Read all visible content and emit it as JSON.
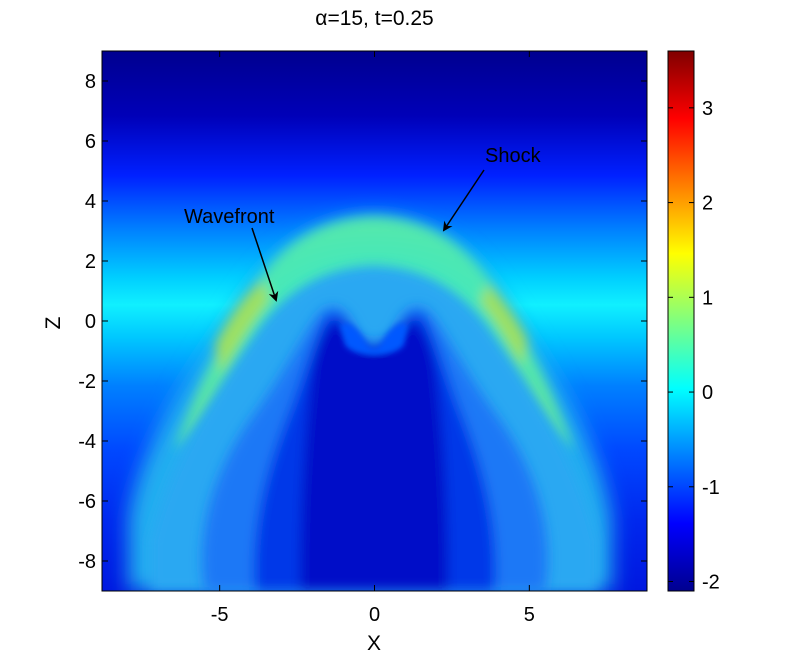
{
  "chart_data": {
    "type": "heatmap",
    "title": "α=15, t=0.25",
    "xlabel": "X",
    "ylabel": "Z",
    "xlim": [
      -8.8,
      8.8
    ],
    "ylim": [
      -9,
      9
    ],
    "xticks": [
      -5,
      0,
      5
    ],
    "yticks": [
      -8,
      -6,
      -4,
      -2,
      0,
      2,
      4,
      6,
      8
    ],
    "colorbar": {
      "range": [
        -2.1,
        3.6
      ],
      "ticks": [
        -2,
        -1,
        0,
        1,
        2,
        3
      ],
      "colormap": "jet"
    },
    "annotations": [
      {
        "text": "Shock",
        "label_at": [
          3.7,
          5.6
        ],
        "arrow_to": [
          2.3,
          3.0
        ]
      },
      {
        "text": "Wavefront",
        "label_at": [
          -6.3,
          3.6
        ],
        "arrow_to": [
          -3.3,
          0.9
        ]
      }
    ],
    "grid": false
  }
}
